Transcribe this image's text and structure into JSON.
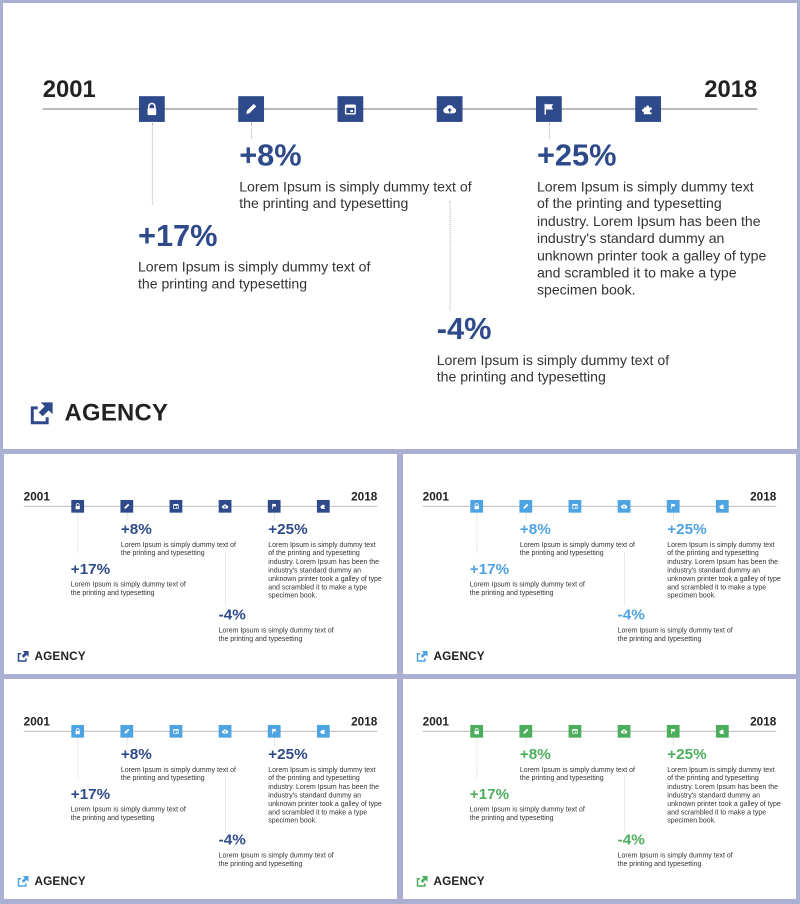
{
  "timeline": {
    "start_year": "2001",
    "end_year": "2018",
    "icons": [
      "lock-icon",
      "pencil-icon",
      "calendar-icon",
      "cloud-upload-icon",
      "flag-icon",
      "puzzle-icon"
    ],
    "entries": [
      {
        "pct": "+8%",
        "desc": "Lorem Ipsum is simply dummy text of the printing and typesetting"
      },
      {
        "pct": "+17%",
        "desc": "Lorem Ipsum is simply dummy text of the printing and typesetting"
      },
      {
        "pct": "+25%",
        "desc": "Lorem Ipsum is simply dummy text of the printing and typesetting industry. Lorem Ipsum has been the industry's standard dummy an unknown printer took a galley of type and scrambled it to make a type specimen book."
      },
      {
        "pct": "-4%",
        "desc": "Lorem Ipsum is simply dummy text of the printing and typesetting"
      }
    ]
  },
  "brand": {
    "name": "AGENCY"
  },
  "slides": [
    {
      "theme": "dark-blue",
      "accent": "#2f4a8a"
    },
    {
      "theme": "dark-blue",
      "accent": "#2f4a8a"
    },
    {
      "theme": "light-blue",
      "accent": "#4ea3e2"
    },
    {
      "theme": "mixed-blue",
      "accent": "#4ea3e2",
      "text_accent": "#2f4a8a"
    },
    {
      "theme": "green",
      "accent": "#4cae5d"
    }
  ]
}
